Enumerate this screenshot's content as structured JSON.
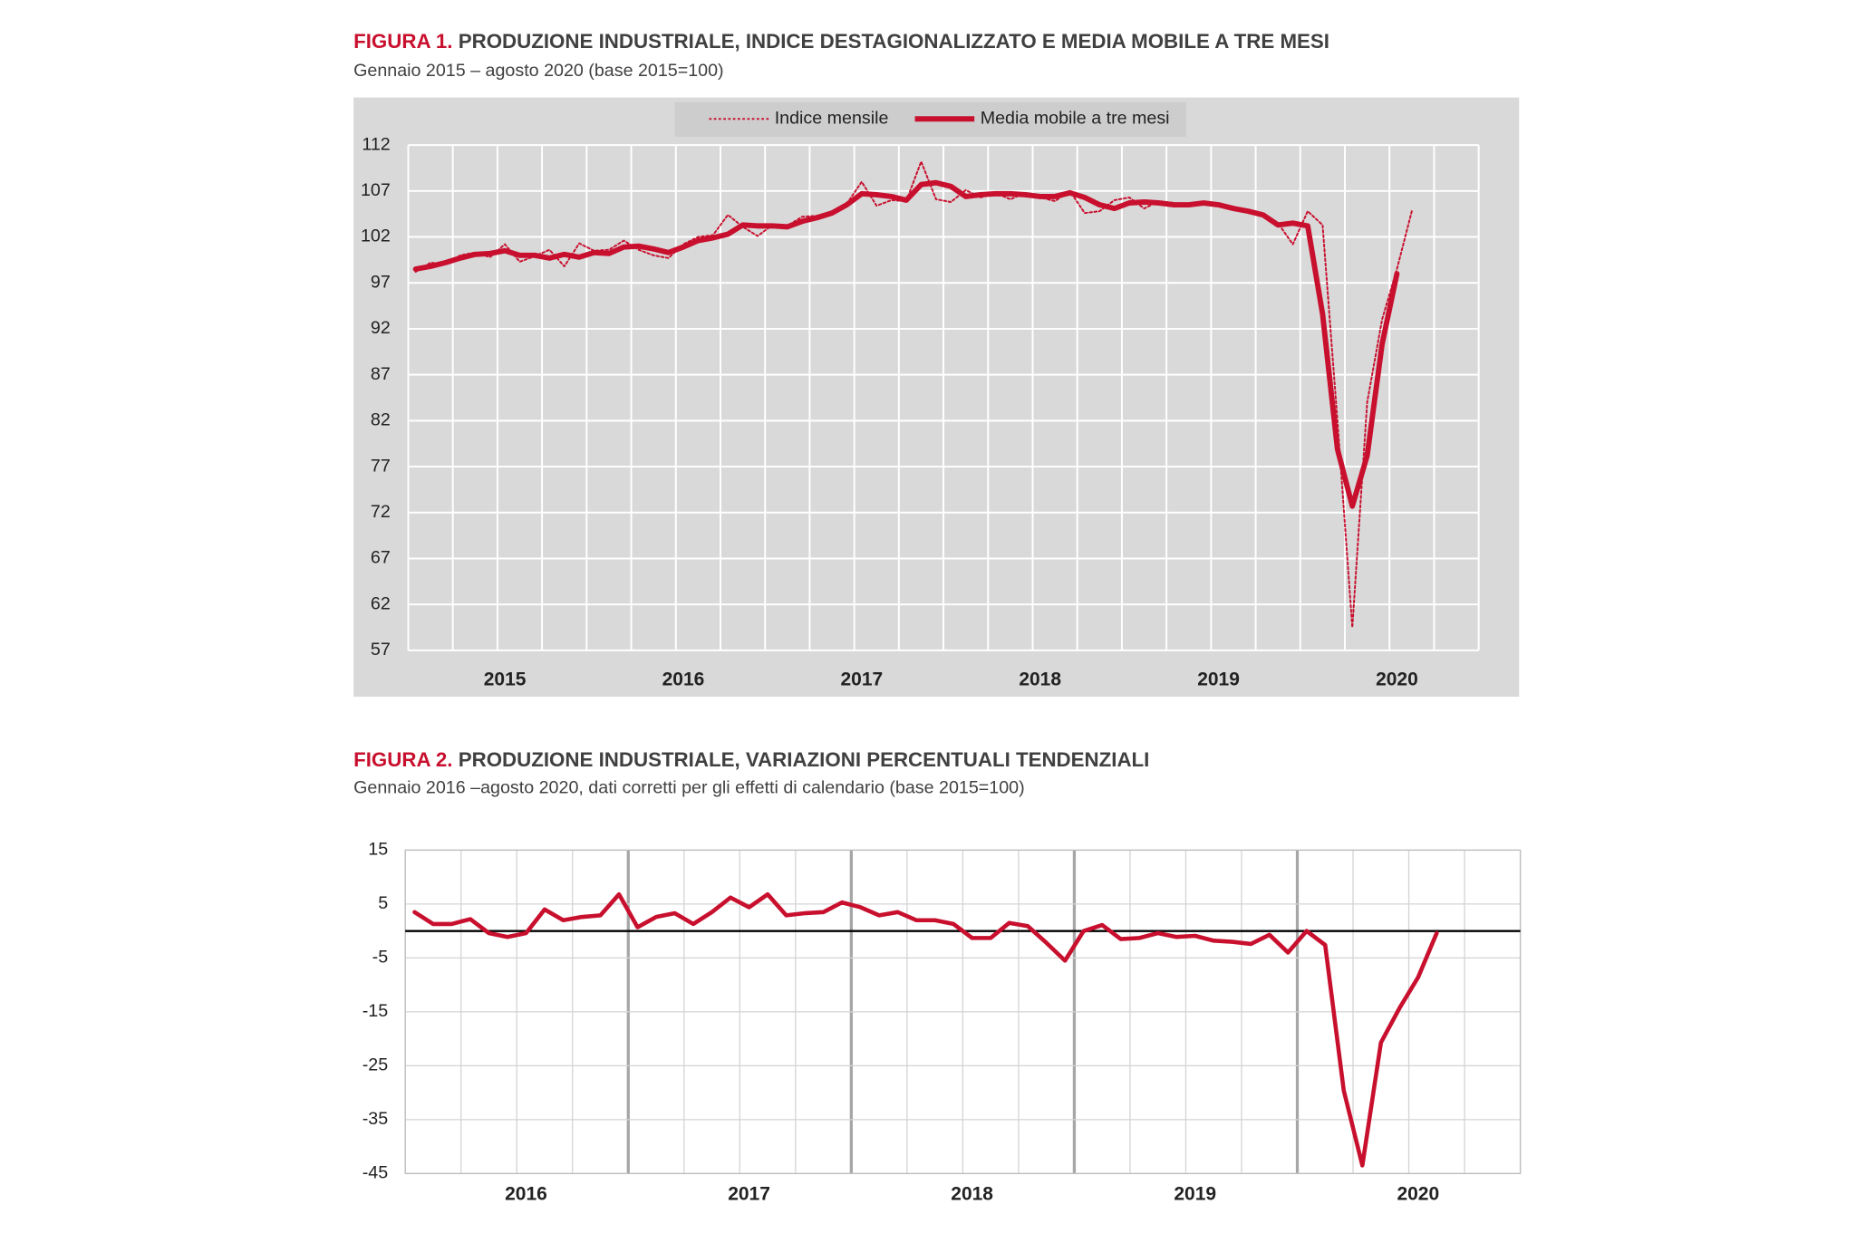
{
  "chart_data": [
    {
      "type": "line",
      "title_label": "FIGURA 1.",
      "title": "PRODUZIONE INDUSTRIALE, INDICE DESTAGIONALIZZATO E MEDIA MOBILE A TRE MESI",
      "subtitle": "Gennaio 2015 – agosto 2020 (base 2015=100)",
      "categories": [
        null,
        null,
        null,
        null,
        null,
        null,
        "2015",
        null,
        null,
        null,
        null,
        null,
        null,
        null,
        null,
        null,
        null,
        null,
        "2016",
        null,
        null,
        null,
        null,
        null,
        null,
        null,
        null,
        null,
        null,
        null,
        "2017",
        null,
        null,
        null,
        null,
        null,
        null,
        null,
        null,
        null,
        null,
        null,
        "2018",
        null,
        null,
        null,
        null,
        null,
        null,
        null,
        null,
        null,
        null,
        null,
        "2019",
        null,
        null,
        null,
        null,
        null,
        null,
        null,
        null,
        null,
        null,
        null,
        "2020",
        null
      ],
      "series": [
        {
          "name": "Indice mensile",
          "color": "#c8102e",
          "style": "dotted",
          "values": [
            98.2,
            99.2,
            99.0,
            100.0,
            100.3,
            99.8,
            101.2,
            99.3,
            99.9,
            100.6,
            98.8,
            101.3,
            100.5,
            100.6,
            101.6,
            100.6,
            100.0,
            99.7,
            101.2,
            102.0,
            102.2,
            104.4,
            103.1,
            102.1,
            103.3,
            103.2,
            104.2,
            104.3,
            104.8,
            105.6,
            108.0,
            105.4,
            106.0,
            105.9,
            110.2,
            106.1,
            105.8,
            107.1,
            106.3,
            106.8,
            106.1,
            106.8,
            106.3,
            105.9,
            107.0,
            104.6,
            104.8,
            106.0,
            106.3,
            105.1,
            105.9,
            105.7,
            105.3,
            105.8,
            105.5,
            105.3,
            104.6,
            104.3,
            103.5,
            101.2,
            104.8,
            103.3,
            82.0,
            59.5,
            84.0,
            93.0,
            98.5,
            104.8
          ]
        },
        {
          "name": "Media mobile a tre mesi",
          "color": "#c8102e",
          "style": "solid",
          "values": [
            98.5,
            98.8,
            99.2,
            99.7,
            100.1,
            100.2,
            100.5,
            100.0,
            100.0,
            99.7,
            100.1,
            99.8,
            100.3,
            100.2,
            100.9,
            101.0,
            100.7,
            100.3,
            100.9,
            101.6,
            101.9,
            102.3,
            103.3,
            103.2,
            103.2,
            103.1,
            103.7,
            104.1,
            104.6,
            105.5,
            106.7,
            106.6,
            106.4,
            106.0,
            107.7,
            107.9,
            107.5,
            106.4,
            106.6,
            106.7,
            106.7,
            106.6,
            106.4,
            106.4,
            106.8,
            106.3,
            105.5,
            105.1,
            105.7,
            105.8,
            105.7,
            105.5,
            105.5,
            105.7,
            105.5,
            105.1,
            104.8,
            104.4,
            103.3,
            103.5,
            103.2,
            93.6,
            78.9,
            72.7,
            78.2,
            90.3,
            98.0,
            null
          ]
        }
      ],
      "ylim": [
        57,
        112
      ],
      "yticks": [
        57,
        62,
        67,
        72,
        77,
        82,
        87,
        92,
        97,
        102,
        107,
        112
      ],
      "grid": true,
      "legend": "top"
    },
    {
      "type": "line",
      "title_label": "FIGURA 2.",
      "title": "PRODUZIONE INDUSTRIALE, VARIAZIONI PERCENTUALI TENDENZIALI",
      "subtitle": "Gennaio 2016 –agosto 2020, dati corretti per gli effetti di calendario (base 2015=100)",
      "categories": [
        null,
        null,
        null,
        null,
        null,
        null,
        "2016",
        null,
        null,
        null,
        null,
        null,
        null,
        null,
        null,
        null,
        null,
        null,
        "2017",
        null,
        null,
        null,
        null,
        null,
        null,
        null,
        null,
        null,
        null,
        null,
        "2018",
        null,
        null,
        null,
        null,
        null,
        null,
        null,
        null,
        null,
        null,
        null,
        "2019",
        null,
        null,
        null,
        null,
        null,
        null,
        null,
        null,
        null,
        null,
        null,
        "2020",
        null
      ],
      "color": "#c8102e",
      "values": [
        3.5,
        1.3,
        1.3,
        2.2,
        -0.4,
        -1.1,
        -0.4,
        4.0,
        2.0,
        2.6,
        2.9,
        6.8,
        0.7,
        2.6,
        3.3,
        1.3,
        3.5,
        6.2,
        4.4,
        6.8,
        2.9,
        3.3,
        3.5,
        5.3,
        4.4,
        2.9,
        3.5,
        2.0,
        2.0,
        1.3,
        -1.3,
        -1.3,
        1.5,
        0.9,
        -2.2,
        -5.5,
        0.0,
        1.1,
        -1.5,
        -1.3,
        -0.4,
        -1.1,
        -0.9,
        -1.8,
        -2.0,
        -2.4,
        -0.7,
        -4.0,
        0.0,
        -2.6,
        -29.6,
        -43.5,
        -20.7,
        -14.3,
        -8.6,
        -0.4
      ],
      "ylim": [
        -45,
        15
      ],
      "yticks": [
        -45,
        -35,
        -25,
        -15,
        -5,
        5,
        15
      ],
      "grid": true
    }
  ]
}
